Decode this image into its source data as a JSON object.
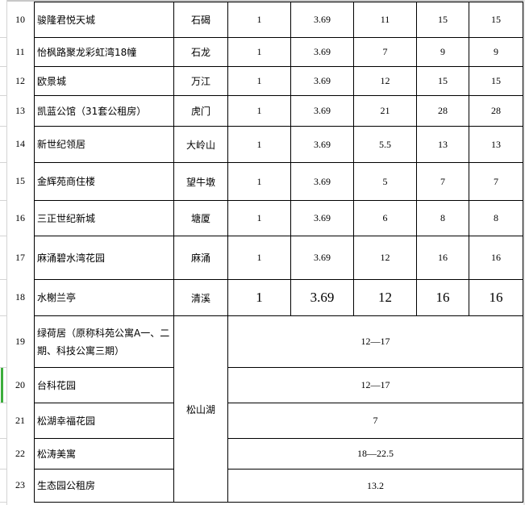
{
  "rows": [
    {
      "no": "10",
      "name": "骏隆君悦天城",
      "district": "石碣",
      "c1": "1",
      "c2": "3.69",
      "c3": "11",
      "c4": "15",
      "c5": "15"
    },
    {
      "no": "11",
      "name": "怡枫路聚龙彩虹湾18幢",
      "district": "石龙",
      "c1": "1",
      "c2": "3.69",
      "c3": "7",
      "c4": "9",
      "c5": "9"
    },
    {
      "no": "12",
      "name": "欧景城",
      "district": "万江",
      "c1": "1",
      "c2": "3.69",
      "c3": "12",
      "c4": "15",
      "c5": "15"
    },
    {
      "no": "13",
      "name": "凯蓝公馆（31套公租房）",
      "district": "虎门",
      "c1": "1",
      "c2": "3.69",
      "c3": "21",
      "c4": "28",
      "c5": "28"
    },
    {
      "no": "14",
      "name": "新世纪领居",
      "district": "大岭山",
      "c1": "1",
      "c2": "3.69",
      "c3": "5.5",
      "c4": "13",
      "c5": "13"
    },
    {
      "no": "15",
      "name": "金辉苑商住楼",
      "district": "望牛墩",
      "c1": "1",
      "c2": "3.69",
      "c3": "5",
      "c4": "7",
      "c5": "7"
    },
    {
      "no": "16",
      "name": "三正世纪新城",
      "district": "塘厦",
      "c1": "1",
      "c2": "3.69",
      "c3": "6",
      "c4": "8",
      "c5": "8"
    },
    {
      "no": "17",
      "name": "麻涌碧水湾花园",
      "district": "麻涌",
      "c1": "1",
      "c2": "3.69",
      "c3": "12",
      "c4": "16",
      "c5": "16"
    },
    {
      "no": "18",
      "name": "水榭兰亭",
      "district": "清溪",
      "c1": "1",
      "c2": "3.69",
      "c3": "12",
      "c4": "16",
      "c5": "16"
    }
  ],
  "merged_district": "松山湖",
  "merged_rows": [
    {
      "no": "19",
      "name": "绿荷居（原称科苑公寓A一、二期、科技公寓三期）",
      "value": "12—17"
    },
    {
      "no": "20",
      "name": "台科花园",
      "value": "12—17"
    },
    {
      "no": "21",
      "name": "松湖幸福花园",
      "value": "7"
    },
    {
      "no": "22",
      "name": "松涛美寓",
      "value": "18—22.5"
    },
    {
      "no": "23",
      "name": "生态园公租房",
      "value": "13.2"
    }
  ]
}
